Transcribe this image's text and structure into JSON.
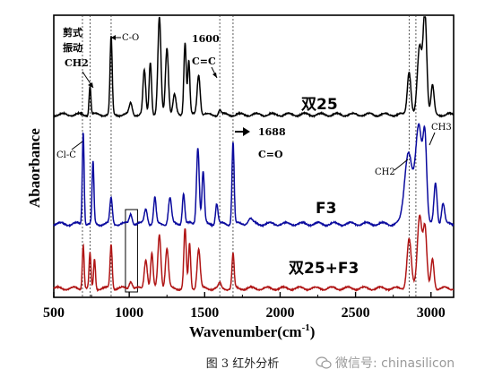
{
  "chart_data": {
    "type": "line",
    "title": "",
    "xlabel": "Wavenumber(cm",
    "xlabel_sup": "-1",
    "xlabel_close": ")",
    "ylabel": "Abaorbance",
    "xlim": [
      500,
      3150
    ],
    "xticks": [
      "500",
      "1000",
      "1500",
      "2000",
      "2500",
      "3000"
    ],
    "grid": false,
    "legend": "none",
    "series": [
      {
        "name": "双25",
        "color": "#000000",
        "peaks": [
          {
            "x": 740,
            "h": 0.3,
            "w": 6
          },
          {
            "x": 880,
            "h": 0.8,
            "w": 7
          },
          {
            "x": 1010,
            "h": 0.12,
            "w": 10
          },
          {
            "x": 1100,
            "h": 0.45,
            "w": 9
          },
          {
            "x": 1140,
            "h": 0.55,
            "w": 8
          },
          {
            "x": 1200,
            "h": 1.0,
            "w": 10
          },
          {
            "x": 1250,
            "h": 0.7,
            "w": 10
          },
          {
            "x": 1300,
            "h": 0.2,
            "w": 10
          },
          {
            "x": 1370,
            "h": 0.75,
            "w": 8
          },
          {
            "x": 1395,
            "h": 0.55,
            "w": 7
          },
          {
            "x": 1460,
            "h": 0.42,
            "w": 10
          },
          {
            "x": 1600,
            "h": 0.05,
            "w": 8
          },
          {
            "x": 2855,
            "h": 0.45,
            "w": 12
          },
          {
            "x": 2925,
            "h": 0.7,
            "w": 15
          },
          {
            "x": 2960,
            "h": 1.05,
            "w": 12
          },
          {
            "x": 3010,
            "h": 0.3,
            "w": 10
          }
        ]
      },
      {
        "name": "F3",
        "color": "#0b0b9e",
        "peaks": [
          {
            "x": 695,
            "h": 0.9,
            "w": 6
          },
          {
            "x": 760,
            "h": 0.6,
            "w": 6
          },
          {
            "x": 880,
            "h": 0.25,
            "w": 8
          },
          {
            "x": 1010,
            "h": 0.1,
            "w": 10
          },
          {
            "x": 1110,
            "h": 0.15,
            "w": 10
          },
          {
            "x": 1170,
            "h": 0.25,
            "w": 8
          },
          {
            "x": 1270,
            "h": 0.25,
            "w": 10
          },
          {
            "x": 1360,
            "h": 0.3,
            "w": 8
          },
          {
            "x": 1455,
            "h": 0.75,
            "w": 9
          },
          {
            "x": 1490,
            "h": 0.5,
            "w": 8
          },
          {
            "x": 1580,
            "h": 0.2,
            "w": 8
          },
          {
            "x": 1688,
            "h": 0.8,
            "w": 7
          },
          {
            "x": 1800,
            "h": 0.05,
            "w": 15
          },
          {
            "x": 2850,
            "h": 0.7,
            "w": 25
          },
          {
            "x": 2920,
            "h": 0.95,
            "w": 22
          },
          {
            "x": 2960,
            "h": 0.75,
            "w": 12
          },
          {
            "x": 3030,
            "h": 0.4,
            "w": 10
          },
          {
            "x": 3080,
            "h": 0.2,
            "w": 10
          }
        ]
      },
      {
        "name": "双25+F3",
        "color": "#b01515",
        "peaks": [
          {
            "x": 695,
            "h": 0.45,
            "w": 6
          },
          {
            "x": 740,
            "h": 0.35,
            "w": 6
          },
          {
            "x": 770,
            "h": 0.3,
            "w": 6
          },
          {
            "x": 880,
            "h": 0.45,
            "w": 7
          },
          {
            "x": 1010,
            "h": 0.08,
            "w": 10
          },
          {
            "x": 1110,
            "h": 0.3,
            "w": 10
          },
          {
            "x": 1150,
            "h": 0.35,
            "w": 8
          },
          {
            "x": 1200,
            "h": 0.55,
            "w": 10
          },
          {
            "x": 1250,
            "h": 0.4,
            "w": 10
          },
          {
            "x": 1370,
            "h": 0.6,
            "w": 8
          },
          {
            "x": 1400,
            "h": 0.45,
            "w": 7
          },
          {
            "x": 1460,
            "h": 0.4,
            "w": 10
          },
          {
            "x": 1600,
            "h": 0.05,
            "w": 8
          },
          {
            "x": 1688,
            "h": 0.35,
            "w": 7
          },
          {
            "x": 2855,
            "h": 0.5,
            "w": 14
          },
          {
            "x": 2925,
            "h": 0.75,
            "w": 15
          },
          {
            "x": 2960,
            "h": 0.6,
            "w": 12
          },
          {
            "x": 3010,
            "h": 0.3,
            "w": 10
          }
        ]
      }
    ],
    "reference_lines": [
      690,
      740,
      880,
      1600,
      1688,
      2855,
      2900
    ],
    "box": {
      "x0": 975,
      "x1": 1055
    },
    "annotations": [
      {
        "id": "scissor",
        "lines": [
          "剪式",
          "振动",
          "CH2"
        ]
      },
      {
        "id": "co",
        "text": "C-O"
      },
      {
        "id": "n1600",
        "text": "1600"
      },
      {
        "id": "cc",
        "text": "C=C"
      },
      {
        "id": "n1688",
        "text": "1688"
      },
      {
        "id": "ceo",
        "text": "C=O"
      },
      {
        "id": "clc",
        "text": "Cl-C"
      },
      {
        "id": "ch2",
        "text": "CH2"
      },
      {
        "id": "ch3",
        "text": "CH3"
      }
    ]
  },
  "caption": "图 3  红外分析",
  "watermark": {
    "icon": "wechat-icon",
    "text": "微信号: chinasilicon"
  }
}
